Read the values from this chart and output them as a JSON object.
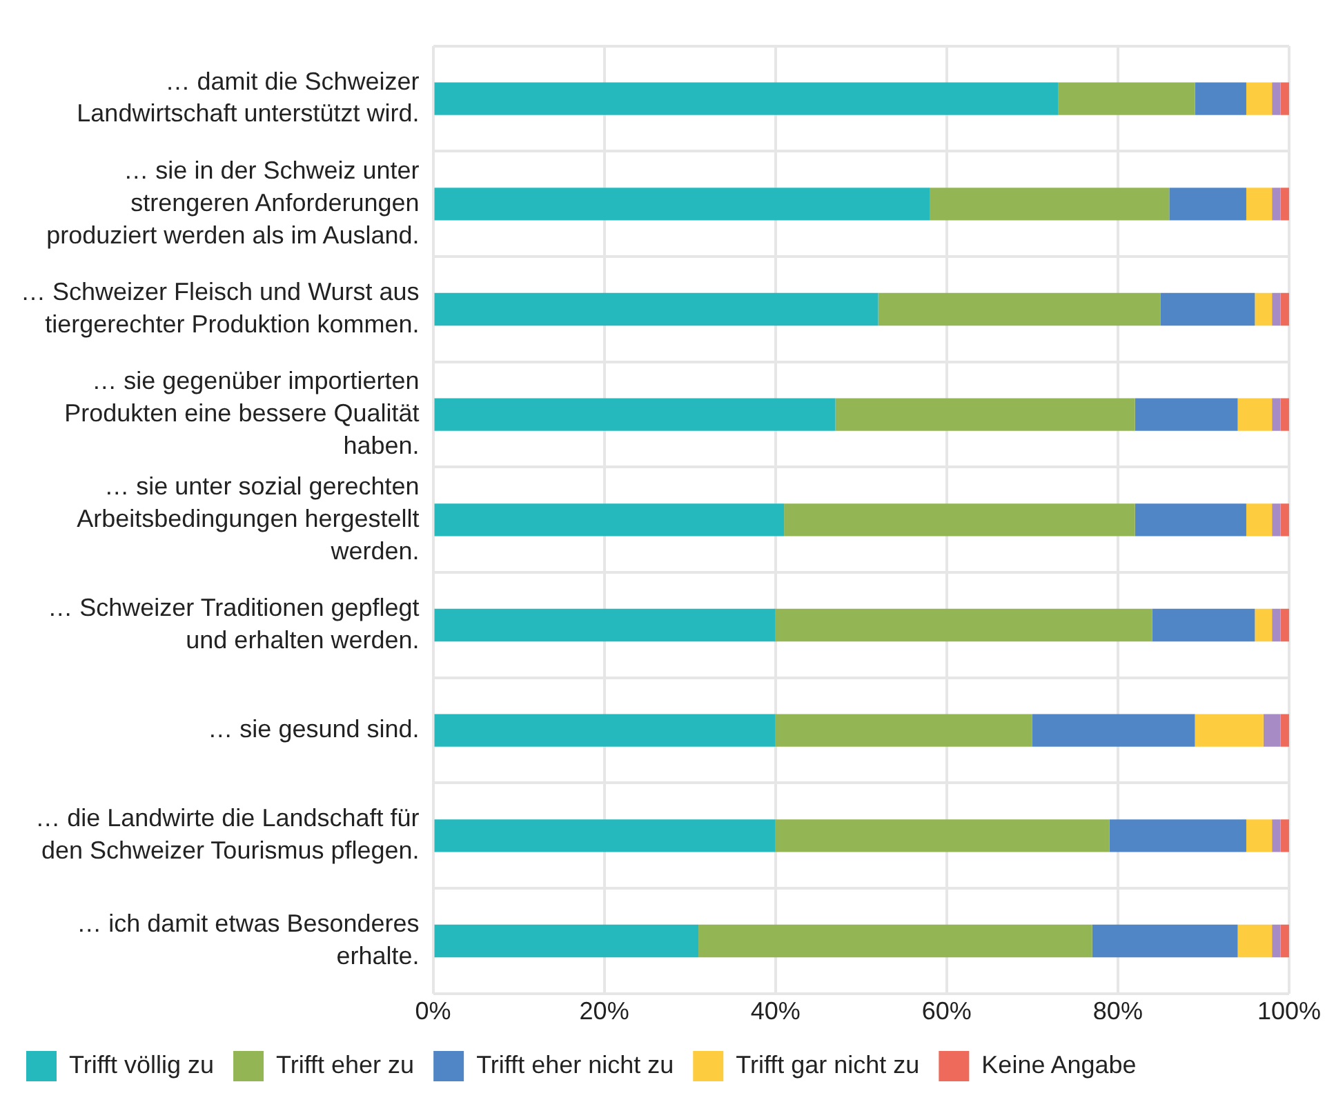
{
  "chart_data": {
    "type": "bar",
    "orientation": "horizontal",
    "stacked": true,
    "grid": true,
    "legend": "bottom",
    "categories": [
      "… damit die Schweizer Landwirtschaft unterstützt wird.",
      "… sie in der Schweiz unter strengeren Anforderungen produziert werden als im Ausland.",
      "… Schweizer Fleisch und Wurst aus tiergerechter Produktion kommen.",
      "… sie gegenüber importierten Produkten eine bessere Qualität haben.",
      "… sie unter sozial gerechten Arbeitsbedingungen hergestellt werden.",
      "… Schweizer Traditionen gepflegt und erhalten werden.",
      "… sie gesund sind.",
      "… die Landwirte die Landschaft für den Schweizer Tourismus pflegen.",
      "… ich damit etwas Besonderes erhalte."
    ],
    "xlim": [
      0,
      100
    ],
    "xticks": [
      {
        "value": 0,
        "label": "0%"
      },
      {
        "value": 20,
        "label": "20%"
      },
      {
        "value": 40,
        "label": "40%"
      },
      {
        "value": 60,
        "label": "60%"
      },
      {
        "value": 80,
        "label": "80%"
      },
      {
        "value": 100,
        "label": "100%"
      }
    ],
    "series": [
      {
        "name": "Trifft völlig zu",
        "color": "#25b8bc",
        "values": [
          73,
          58,
          52,
          47,
          41,
          40,
          40,
          40,
          31
        ]
      },
      {
        "name": "Trifft eher zu",
        "color": "#93b553",
        "values": [
          16,
          28,
          33,
          35,
          41,
          44,
          30,
          39,
          46
        ]
      },
      {
        "name": "Trifft eher nicht zu",
        "color": "#5186c6",
        "values": [
          6,
          9,
          11,
          12,
          13,
          12,
          19,
          16,
          17
        ]
      },
      {
        "name": "Trifft gar nicht zu",
        "color": "#fecd3f",
        "values": [
          3,
          3,
          2,
          4,
          3,
          2,
          8,
          3,
          4
        ]
      },
      {
        "color": "#a78bc5",
        "values": [
          1,
          1,
          1,
          1,
          1,
          1,
          2,
          1,
          1
        ]
      },
      {
        "name": "Keine Angabe",
        "color": "#ee6a5a",
        "values": [
          1,
          1,
          1,
          1,
          1,
          1,
          1,
          1,
          1
        ]
      }
    ]
  }
}
